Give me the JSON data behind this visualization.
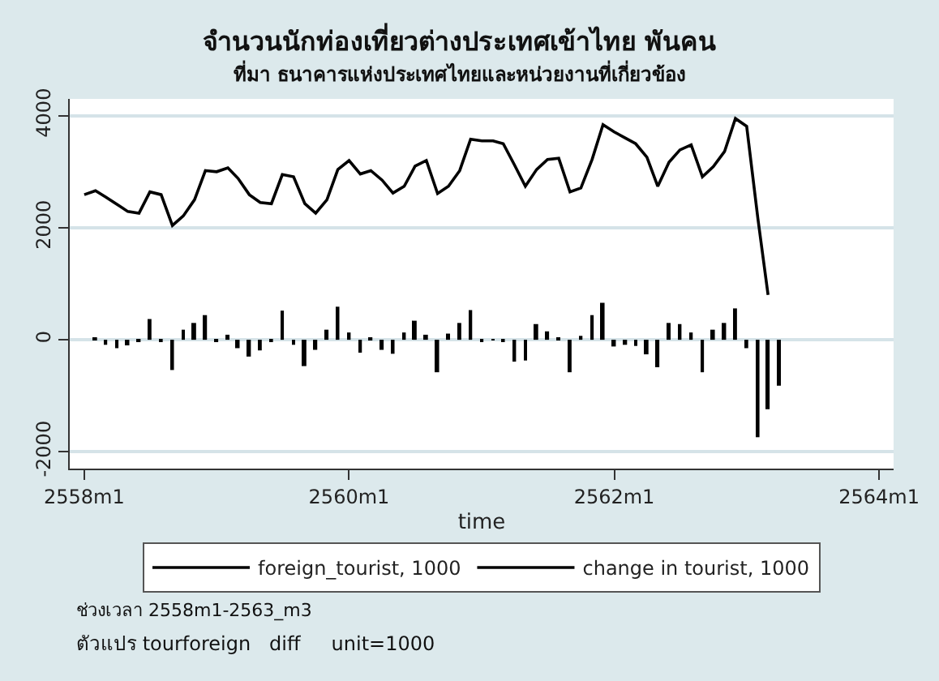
{
  "chart_data": {
    "type": "line",
    "title": "จำนวนนักท่องเที่ยวต่างประเทศเข้าไทย พันคน",
    "subtitle": "ที่มา ธนาคารแห่งประเทศไทยและหน่วยงานที่เกี่ยวข้อง",
    "xlabel": "time",
    "xlim": [
      "2557-11-22",
      "2564-02-10"
    ],
    "xticks": [
      {
        "value": "2558-01",
        "label": "2558m1"
      },
      {
        "value": "2560-01",
        "label": "2560m1"
      },
      {
        "value": "2562-01",
        "label": "2562m1"
      },
      {
        "value": "2564-01",
        "label": "2564m1"
      }
    ],
    "ylim": [
      -2300,
      4300
    ],
    "yticks": [
      -2000,
      0,
      2000,
      4000
    ],
    "grid": "y",
    "legend": "bottom",
    "marker": "none",
    "line_style": "solid",
    "series": [
      {
        "name": "foreign_tourist, 1000",
        "type": "line",
        "color": "#000000",
        "x": [
          "2558-01",
          "2558-02",
          "2558-03",
          "2558-04",
          "2558-05",
          "2558-06",
          "2558-07",
          "2558-08",
          "2558-09",
          "2558-10",
          "2558-11",
          "2558-12",
          "2559-01",
          "2559-02",
          "2559-03",
          "2559-04",
          "2559-05",
          "2559-06",
          "2559-07",
          "2559-08",
          "2559-09",
          "2559-10",
          "2559-11",
          "2559-12",
          "2560-01",
          "2560-02",
          "2560-03",
          "2560-04",
          "2560-05",
          "2560-06",
          "2560-07",
          "2560-08",
          "2560-09",
          "2560-10",
          "2560-11",
          "2560-12",
          "2561-01",
          "2561-02",
          "2561-03",
          "2561-04",
          "2561-05",
          "2561-06",
          "2561-07",
          "2561-08",
          "2561-09",
          "2561-10",
          "2561-11",
          "2561-12",
          "2562-01",
          "2562-02",
          "2562-03",
          "2562-04",
          "2562-05",
          "2562-06",
          "2562-07",
          "2562-08",
          "2562-09",
          "2562-10",
          "2562-11",
          "2562-12",
          "2563-01",
          "2563-02",
          "2563-03"
        ],
        "values": [
          2590,
          2660,
          2550,
          2420,
          2290,
          2260,
          2640,
          2590,
          2040,
          2210,
          2500,
          3020,
          3000,
          3070,
          2880,
          2590,
          2450,
          2430,
          2950,
          2910,
          2430,
          2260,
          2500,
          3040,
          3200,
          2960,
          3020,
          2850,
          2620,
          2740,
          3100,
          3200,
          2610,
          2740,
          3020,
          3580,
          3550,
          3550,
          3500,
          3120,
          2740,
          3040,
          3220,
          3240,
          2640,
          2710,
          3220,
          3840,
          3710,
          3600,
          3500,
          3260,
          2740,
          3170,
          3390,
          3480,
          2910,
          3090,
          3360,
          3950,
          3810,
          2160,
          800
        ]
      },
      {
        "name": "change in tourist, 1000",
        "type": "bar",
        "color": "#000000",
        "x": [
          "2558-02",
          "2558-03",
          "2558-04",
          "2558-05",
          "2558-06",
          "2558-07",
          "2558-08",
          "2558-09",
          "2558-10",
          "2558-11",
          "2558-12",
          "2559-01",
          "2559-02",
          "2559-03",
          "2559-04",
          "2559-05",
          "2559-06",
          "2559-07",
          "2559-08",
          "2559-09",
          "2559-10",
          "2559-11",
          "2559-12",
          "2560-01",
          "2560-02",
          "2560-03",
          "2560-04",
          "2560-05",
          "2560-06",
          "2560-07",
          "2560-08",
          "2560-09",
          "2560-10",
          "2560-11",
          "2560-12",
          "2561-01",
          "2561-02",
          "2561-03",
          "2561-04",
          "2561-05",
          "2561-06",
          "2561-07",
          "2561-08",
          "2561-09",
          "2561-10",
          "2561-11",
          "2561-12",
          "2562-01",
          "2562-02",
          "2562-03",
          "2562-04",
          "2562-05",
          "2562-06",
          "2562-07",
          "2562-08",
          "2562-09",
          "2562-10",
          "2562-11",
          "2562-12",
          "2563-01",
          "2563-02",
          "2563-03",
          "2563-04"
        ],
        "values": [
          40,
          -90,
          -150,
          -100,
          -20,
          370,
          -40,
          -540,
          180,
          300,
          440,
          -20,
          90,
          -150,
          -300,
          -190,
          -20,
          520,
          -90,
          -470,
          -180,
          180,
          590,
          130,
          -230,
          40,
          -180,
          -250,
          130,
          340,
          90,
          -580,
          110,
          300,
          530,
          -20,
          -10,
          -40,
          -390,
          -370,
          280,
          150,
          30,
          -580,
          70,
          440,
          660,
          -120,
          -90,
          -110,
          -260,
          -490,
          300,
          280,
          130,
          -580,
          180,
          300,
          560,
          -150,
          -1740,
          -1240,
          -820
        ]
      }
    ],
    "annotations": [
      "ช่วงเวลา 2558m1-2563_m3",
      "ตัวแปร tourforeign   diff     unit=1000"
    ]
  }
}
